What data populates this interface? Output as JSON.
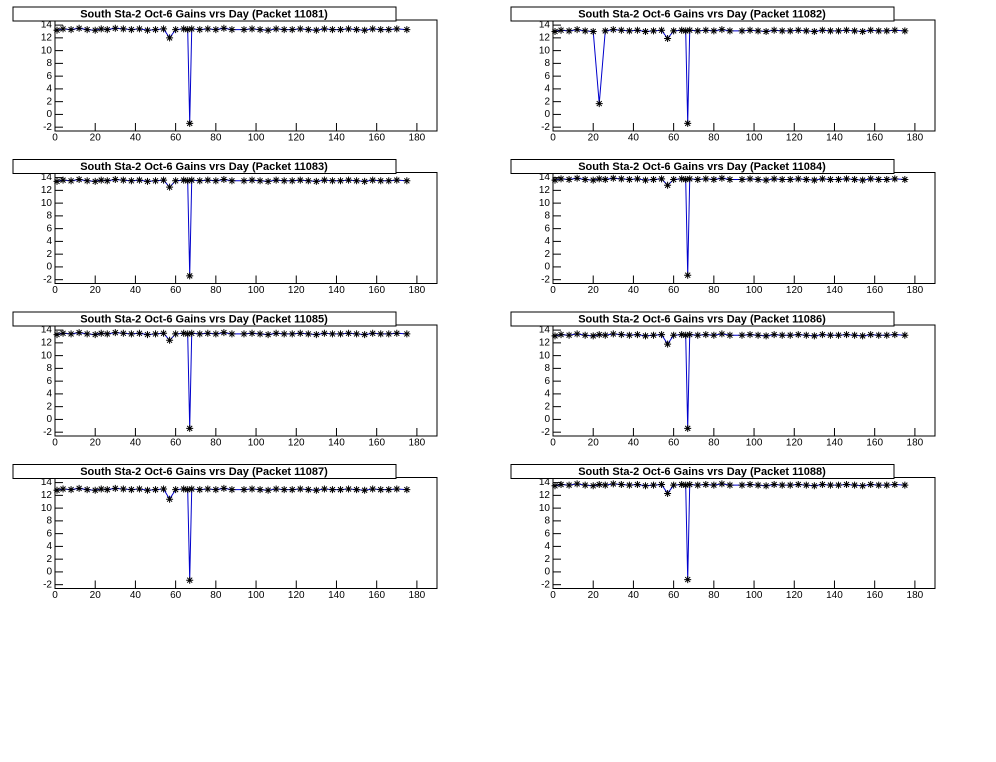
{
  "chart_data": [
    {
      "type": "line",
      "title": "South Sta-2 Oct-6 Gains vrs Day (Packet 11081)",
      "color": "#0000cc",
      "marker_color": "#000000",
      "x": [
        1,
        4,
        8,
        12,
        16,
        20,
        23,
        26,
        30,
        34,
        38,
        42,
        46,
        50,
        54,
        57,
        60,
        64,
        66,
        67,
        68,
        72,
        76,
        80,
        84,
        88,
        94,
        98,
        102,
        106,
        110,
        114,
        118,
        122,
        126,
        130,
        134,
        138,
        142,
        146,
        150,
        154,
        158,
        162,
        166,
        170,
        175
      ],
      "values": [
        13.2,
        13.4,
        13.3,
        13.5,
        13.3,
        13.2,
        13.4,
        13.3,
        13.5,
        13.4,
        13.3,
        13.4,
        13.2,
        13.3,
        13.4,
        12.0,
        13.3,
        13.4,
        13.3,
        -1.4,
        13.4,
        13.3,
        13.4,
        13.3,
        13.5,
        13.3,
        13.3,
        13.4,
        13.3,
        13.2,
        13.4,
        13.3,
        13.3,
        13.4,
        13.3,
        13.2,
        13.4,
        13.3,
        13.3,
        13.4,
        13.3,
        13.2,
        13.4,
        13.3,
        13.3,
        13.4,
        13.3
      ],
      "xlim": [
        0,
        190
      ],
      "ylim": [
        -2.6,
        14.8
      ],
      "xticks": [
        0,
        20,
        40,
        60,
        80,
        100,
        120,
        140,
        160,
        180
      ],
      "yticks": [
        -2,
        0,
        2,
        4,
        6,
        8,
        10,
        12,
        14
      ]
    },
    {
      "type": "line",
      "title": "South Sta-2 Oct-6 Gains vrs Day (Packet 11082)",
      "color": "#0000cc",
      "marker_color": "#000000",
      "x": [
        1,
        4,
        8,
        12,
        16,
        20,
        23,
        26,
        30,
        34,
        38,
        42,
        46,
        50,
        54,
        57,
        60,
        64,
        66,
        67,
        68,
        72,
        76,
        80,
        84,
        88,
        94,
        98,
        102,
        106,
        110,
        114,
        118,
        122,
        126,
        130,
        134,
        138,
        142,
        146,
        150,
        154,
        158,
        162,
        166,
        170,
        175
      ],
      "values": [
        13.0,
        13.2,
        13.1,
        13.3,
        13.1,
        13.0,
        1.7,
        13.1,
        13.3,
        13.2,
        13.1,
        13.2,
        13.0,
        13.1,
        13.2,
        11.9,
        13.1,
        13.2,
        13.1,
        -1.4,
        13.2,
        13.1,
        13.2,
        13.1,
        13.3,
        13.1,
        13.1,
        13.2,
        13.1,
        13.0,
        13.2,
        13.1,
        13.1,
        13.2,
        13.1,
        13.0,
        13.2,
        13.1,
        13.1,
        13.2,
        13.1,
        13.0,
        13.2,
        13.1,
        13.1,
        13.2,
        13.1
      ],
      "xlim": [
        0,
        190
      ],
      "ylim": [
        -2.6,
        14.8
      ],
      "xticks": [
        0,
        20,
        40,
        60,
        80,
        100,
        120,
        140,
        160,
        180
      ],
      "yticks": [
        -2,
        0,
        2,
        4,
        6,
        8,
        10,
        12,
        14
      ]
    },
    {
      "type": "line",
      "title": "South Sta-2 Oct-6 Gains vrs Day (Packet 11083)",
      "color": "#0000cc",
      "marker_color": "#000000",
      "x": [
        1,
        4,
        8,
        12,
        16,
        20,
        23,
        26,
        30,
        34,
        38,
        42,
        46,
        50,
        54,
        57,
        60,
        64,
        66,
        67,
        68,
        72,
        76,
        80,
        84,
        88,
        94,
        98,
        102,
        106,
        110,
        114,
        118,
        122,
        126,
        130,
        134,
        138,
        142,
        146,
        150,
        154,
        158,
        162,
        166,
        170,
        175
      ],
      "values": [
        13.4,
        13.6,
        13.5,
        13.7,
        13.5,
        13.4,
        13.6,
        13.5,
        13.7,
        13.6,
        13.5,
        13.6,
        13.4,
        13.5,
        13.6,
        12.5,
        13.5,
        13.6,
        13.5,
        -1.4,
        13.6,
        13.5,
        13.6,
        13.5,
        13.7,
        13.5,
        13.5,
        13.6,
        13.5,
        13.4,
        13.6,
        13.5,
        13.5,
        13.6,
        13.5,
        13.4,
        13.6,
        13.5,
        13.5,
        13.6,
        13.5,
        13.4,
        13.6,
        13.5,
        13.5,
        13.6,
        13.5
      ],
      "xlim": [
        0,
        190
      ],
      "ylim": [
        -2.6,
        14.8
      ],
      "xticks": [
        0,
        20,
        40,
        60,
        80,
        100,
        120,
        140,
        160,
        180
      ],
      "yticks": [
        -2,
        0,
        2,
        4,
        6,
        8,
        10,
        12,
        14
      ]
    },
    {
      "type": "line",
      "title": "South Sta-2 Oct-6 Gains vrs Day (Packet 11084)",
      "color": "#0000cc",
      "marker_color": "#000000",
      "x": [
        1,
        4,
        8,
        12,
        16,
        20,
        23,
        26,
        30,
        34,
        38,
        42,
        46,
        50,
        54,
        57,
        60,
        64,
        66,
        67,
        68,
        72,
        76,
        80,
        84,
        88,
        94,
        98,
        102,
        106,
        110,
        114,
        118,
        122,
        126,
        130,
        134,
        138,
        142,
        146,
        150,
        154,
        158,
        162,
        166,
        170,
        175
      ],
      "values": [
        13.6,
        13.8,
        13.7,
        13.9,
        13.7,
        13.6,
        13.8,
        13.7,
        13.9,
        13.8,
        13.7,
        13.8,
        13.6,
        13.7,
        13.8,
        12.8,
        13.7,
        13.8,
        13.7,
        -1.3,
        13.8,
        13.7,
        13.8,
        13.7,
        13.9,
        13.7,
        13.7,
        13.8,
        13.7,
        13.6,
        13.8,
        13.7,
        13.7,
        13.8,
        13.7,
        13.6,
        13.8,
        13.7,
        13.7,
        13.8,
        13.7,
        13.6,
        13.8,
        13.7,
        13.7,
        13.8,
        13.7
      ],
      "xlim": [
        0,
        190
      ],
      "ylim": [
        -2.6,
        14.8
      ],
      "xticks": [
        0,
        20,
        40,
        60,
        80,
        100,
        120,
        140,
        160,
        180
      ],
      "yticks": [
        -2,
        0,
        2,
        4,
        6,
        8,
        10,
        12,
        14
      ]
    },
    {
      "type": "line",
      "title": "South Sta-2 Oct-6 Gains vrs Day (Packet 11085)",
      "color": "#0000cc",
      "marker_color": "#000000",
      "x": [
        1,
        4,
        8,
        12,
        16,
        20,
        23,
        26,
        30,
        34,
        38,
        42,
        46,
        50,
        54,
        57,
        60,
        64,
        66,
        67,
        68,
        72,
        76,
        80,
        84,
        88,
        94,
        98,
        102,
        106,
        110,
        114,
        118,
        122,
        126,
        130,
        134,
        138,
        142,
        146,
        150,
        154,
        158,
        162,
        166,
        170,
        175
      ],
      "values": [
        13.3,
        13.5,
        13.4,
        13.6,
        13.4,
        13.3,
        13.5,
        13.4,
        13.6,
        13.5,
        13.4,
        13.5,
        13.3,
        13.4,
        13.5,
        12.4,
        13.4,
        13.5,
        13.4,
        -1.4,
        13.5,
        13.4,
        13.5,
        13.4,
        13.6,
        13.4,
        13.4,
        13.5,
        13.4,
        13.3,
        13.5,
        13.4,
        13.4,
        13.5,
        13.4,
        13.3,
        13.5,
        13.4,
        13.4,
        13.5,
        13.4,
        13.3,
        13.5,
        13.4,
        13.4,
        13.5,
        13.4
      ],
      "xlim": [
        0,
        190
      ],
      "ylim": [
        -2.6,
        14.8
      ],
      "xticks": [
        0,
        20,
        40,
        60,
        80,
        100,
        120,
        140,
        160,
        180
      ],
      "yticks": [
        -2,
        0,
        2,
        4,
        6,
        8,
        10,
        12,
        14
      ]
    },
    {
      "type": "line",
      "title": "South Sta-2 Oct-6 Gains vrs Day (Packet 11086)",
      "color": "#0000cc",
      "marker_color": "#000000",
      "x": [
        1,
        4,
        8,
        12,
        16,
        20,
        23,
        26,
        30,
        34,
        38,
        42,
        46,
        50,
        54,
        57,
        60,
        64,
        66,
        67,
        68,
        72,
        76,
        80,
        84,
        88,
        94,
        98,
        102,
        106,
        110,
        114,
        118,
        122,
        126,
        130,
        134,
        138,
        142,
        146,
        150,
        154,
        158,
        162,
        166,
        170,
        175
      ],
      "values": [
        13.1,
        13.3,
        13.2,
        13.4,
        13.2,
        13.1,
        13.3,
        13.2,
        13.4,
        13.3,
        13.2,
        13.3,
        13.1,
        13.2,
        13.3,
        11.8,
        13.2,
        13.3,
        13.2,
        -1.4,
        13.3,
        13.2,
        13.3,
        13.2,
        13.4,
        13.2,
        13.2,
        13.3,
        13.2,
        13.1,
        13.3,
        13.2,
        13.2,
        13.3,
        13.2,
        13.1,
        13.3,
        13.2,
        13.2,
        13.3,
        13.2,
        13.1,
        13.3,
        13.2,
        13.2,
        13.3,
        13.2
      ],
      "xlim": [
        0,
        190
      ],
      "ylim": [
        -2.6,
        14.8
      ],
      "xticks": [
        0,
        20,
        40,
        60,
        80,
        100,
        120,
        140,
        160,
        180
      ],
      "yticks": [
        -2,
        0,
        2,
        4,
        6,
        8,
        10,
        12,
        14
      ]
    },
    {
      "type": "line",
      "title": "South Sta-2 Oct-6 Gains vrs Day (Packet 11087)",
      "color": "#0000cc",
      "marker_color": "#000000",
      "x": [
        1,
        4,
        8,
        12,
        16,
        20,
        23,
        26,
        30,
        34,
        38,
        42,
        46,
        50,
        54,
        57,
        60,
        64,
        66,
        67,
        68,
        72,
        76,
        80,
        84,
        88,
        94,
        98,
        102,
        106,
        110,
        114,
        118,
        122,
        126,
        130,
        134,
        138,
        142,
        146,
        150,
        154,
        158,
        162,
        166,
        170,
        175
      ],
      "values": [
        12.8,
        13.0,
        12.9,
        13.1,
        12.9,
        12.8,
        13.0,
        12.9,
        13.1,
        13.0,
        12.9,
        13.0,
        12.8,
        12.9,
        13.0,
        11.4,
        12.9,
        13.0,
        12.9,
        -1.3,
        13.0,
        12.9,
        13.0,
        12.9,
        13.1,
        12.9,
        12.9,
        13.0,
        12.9,
        12.8,
        13.0,
        12.9,
        12.9,
        13.0,
        12.9,
        12.8,
        13.0,
        12.9,
        12.9,
        13.0,
        12.9,
        12.8,
        13.0,
        12.9,
        12.9,
        13.0,
        12.9
      ],
      "xlim": [
        0,
        190
      ],
      "ylim": [
        -2.6,
        14.8
      ],
      "xticks": [
        0,
        20,
        40,
        60,
        80,
        100,
        120,
        140,
        160,
        180
      ],
      "yticks": [
        -2,
        0,
        2,
        4,
        6,
        8,
        10,
        12,
        14
      ]
    },
    {
      "type": "line",
      "title": "South Sta-2 Oct-6 Gains vrs Day (Packet 11088)",
      "color": "#0000cc",
      "marker_color": "#000000",
      "x": [
        1,
        4,
        8,
        12,
        16,
        20,
        23,
        26,
        30,
        34,
        38,
        42,
        46,
        50,
        54,
        57,
        60,
        64,
        66,
        67,
        68,
        72,
        76,
        80,
        84,
        88,
        94,
        98,
        102,
        106,
        110,
        114,
        118,
        122,
        126,
        130,
        134,
        138,
        142,
        146,
        150,
        154,
        158,
        162,
        166,
        170,
        175
      ],
      "values": [
        13.5,
        13.7,
        13.6,
        13.8,
        13.6,
        13.5,
        13.7,
        13.6,
        13.8,
        13.7,
        13.6,
        13.7,
        13.5,
        13.6,
        13.7,
        12.3,
        13.6,
        13.7,
        13.6,
        -1.2,
        13.7,
        13.6,
        13.7,
        13.6,
        13.8,
        13.6,
        13.6,
        13.7,
        13.6,
        13.5,
        13.7,
        13.6,
        13.6,
        13.7,
        13.6,
        13.5,
        13.7,
        13.6,
        13.6,
        13.7,
        13.6,
        13.5,
        13.7,
        13.6,
        13.6,
        13.7,
        13.6
      ],
      "xlim": [
        0,
        190
      ],
      "ylim": [
        -2.6,
        14.8
      ],
      "xticks": [
        0,
        20,
        40,
        60,
        80,
        100,
        120,
        140,
        160,
        180
      ],
      "yticks": [
        -2,
        0,
        2,
        4,
        6,
        8,
        10,
        12,
        14
      ]
    }
  ]
}
